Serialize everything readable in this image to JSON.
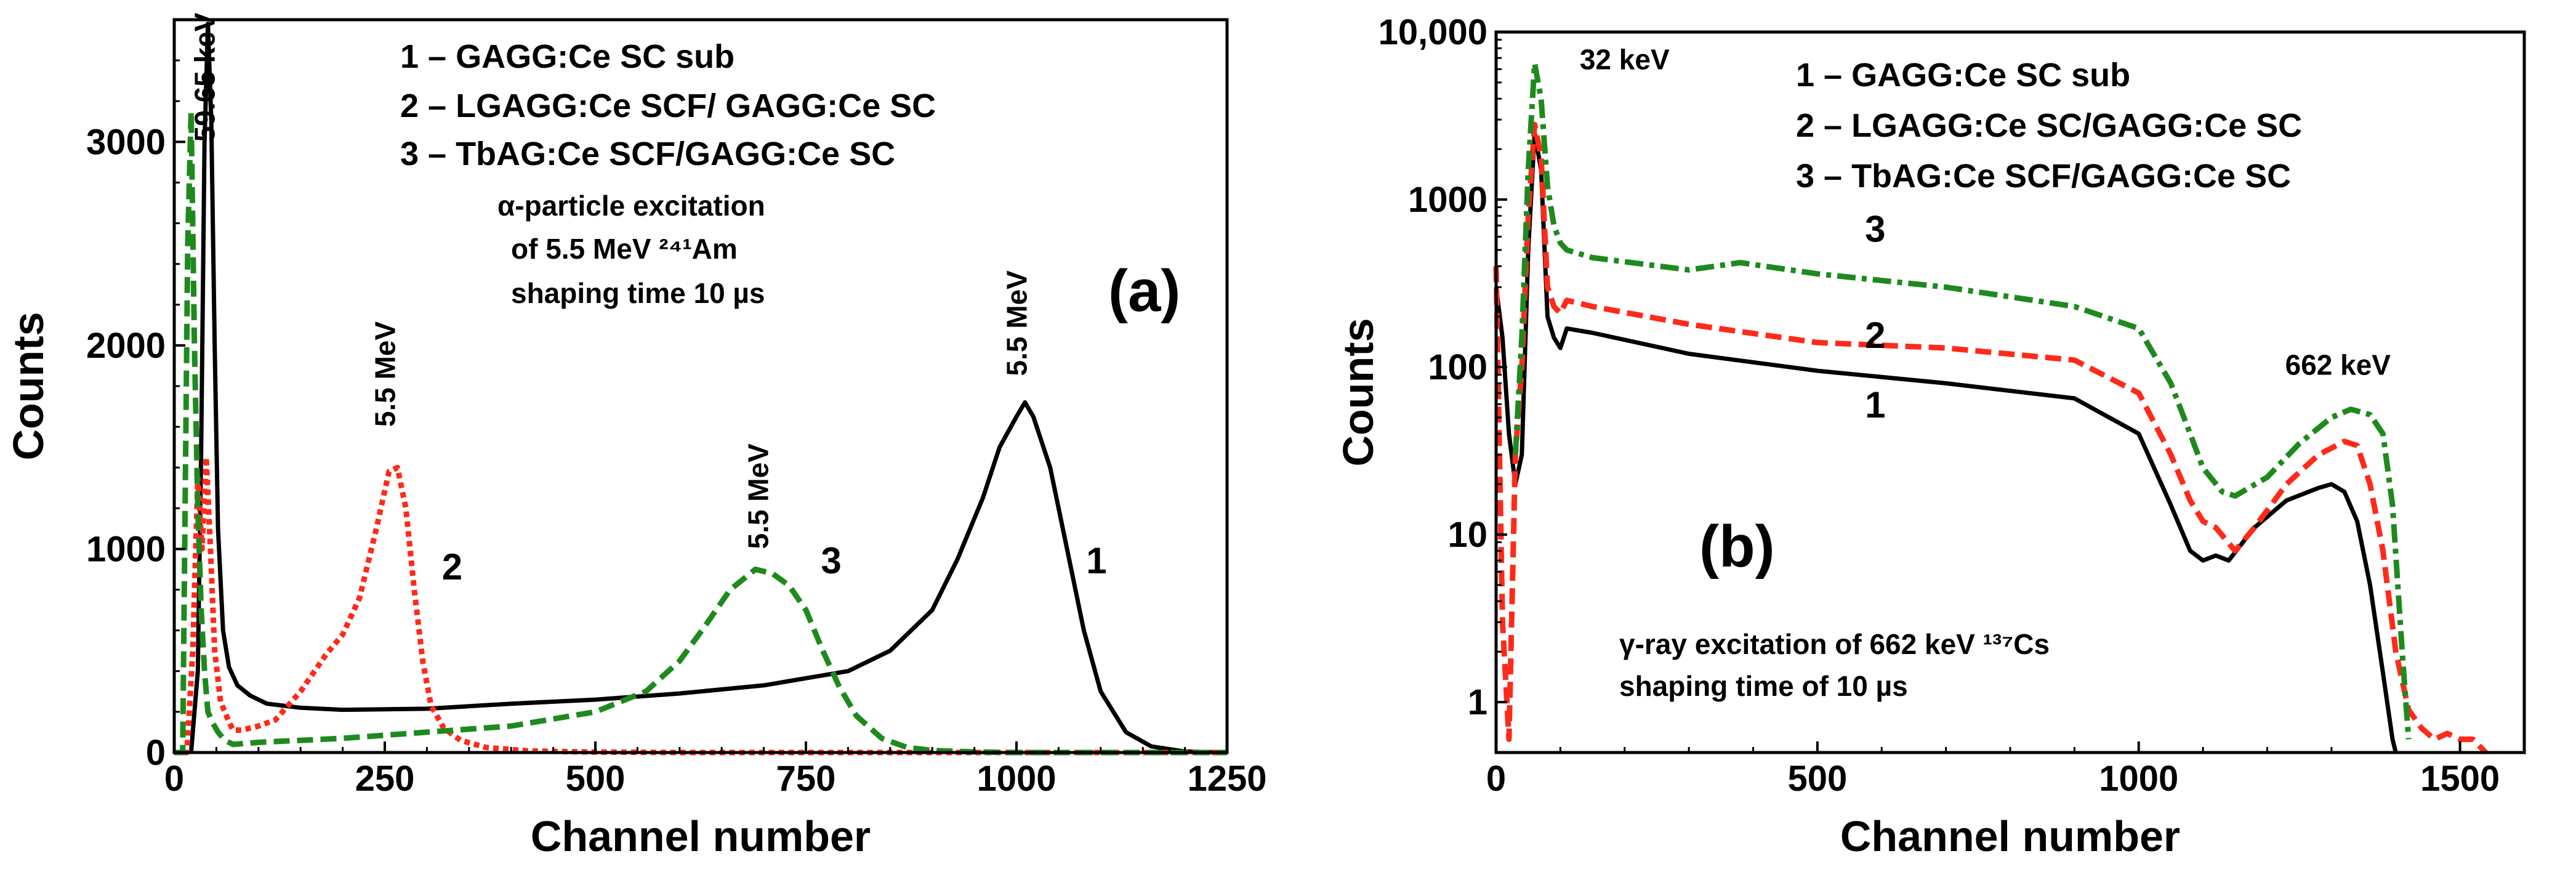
{
  "chart_data": [
    {
      "type": "line",
      "panel_label": "(a)",
      "xlabel": "Channel number",
      "ylabel": "Counts",
      "xlim": [
        0,
        1250
      ],
      "ylim": [
        0,
        3600
      ],
      "x_ticks": [
        "0",
        "250",
        "500",
        "750",
        "1000",
        "1250"
      ],
      "x_tick_values": [
        0,
        250,
        500,
        750,
        1000,
        1250
      ],
      "y_ticks": [
        "0",
        "1000",
        "2000",
        "3000"
      ],
      "y_tick_values": [
        0,
        1000,
        2000,
        3000
      ],
      "legend": [
        "1 – GAGG:Ce SC sub",
        "2 – LGAGG:Ce SCF/ GAGG:Ce SC",
        "3 – TbAG:Ce SCF/GAGG:Ce SC"
      ],
      "annotation_lines": [
        "α-particle excitation",
        "of 5.5 MeV ²⁴¹Am",
        "shaping time 10 µs"
      ],
      "peak_labels": [
        {
          "text": "59.65 keV",
          "x": 48,
          "y": 3000
        },
        {
          "text": "5.5 MeV",
          "x": 262,
          "y": 1600
        },
        {
          "text": "5.5 MeV",
          "x": 705,
          "y": 1000
        },
        {
          "text": "5.5 MeV",
          "x": 1012,
          "y": 1850
        }
      ],
      "curve_labels": [
        {
          "text": "1",
          "x": 1095,
          "y": 880
        },
        {
          "text": "2",
          "x": 330,
          "y": 850
        },
        {
          "text": "3",
          "x": 780,
          "y": 880
        }
      ],
      "series": [
        {
          "name": "1",
          "color": "#000000",
          "style": "solid",
          "x": [
            20,
            28,
            32,
            36,
            40,
            44,
            48,
            52,
            58,
            65,
            75,
            90,
            110,
            150,
            200,
            300,
            400,
            500,
            600,
            700,
            800,
            850,
            900,
            930,
            960,
            980,
            1000,
            1010,
            1020,
            1040,
            1060,
            1080,
            1100,
            1130,
            1160,
            1200,
            1250
          ],
          "y": [
            0,
            400,
            1500,
            3000,
            3580,
            3100,
            2000,
            1100,
            600,
            420,
            330,
            280,
            240,
            220,
            210,
            215,
            240,
            260,
            290,
            330,
            400,
            500,
            700,
            950,
            1250,
            1500,
            1650,
            1720,
            1650,
            1400,
            1000,
            600,
            300,
            100,
            30,
            5,
            0
          ]
        },
        {
          "name": "2",
          "color": "#ff2a1a",
          "style": "dotted",
          "x": [
            0,
            15,
            22,
            28,
            33,
            38,
            43,
            48,
            55,
            60,
            65,
            70,
            80,
            100,
            120,
            150,
            180,
            200,
            220,
            240,
            255,
            265,
            275,
            285,
            295,
            305,
            320,
            340,
            370,
            420,
            500,
            600,
            800,
            1000,
            1250
          ],
          "y": [
            0,
            0,
            500,
            1350,
            1000,
            1450,
            1000,
            500,
            250,
            200,
            150,
            110,
            110,
            130,
            160,
            300,
            480,
            580,
            760,
            1100,
            1380,
            1400,
            1200,
            800,
            450,
            230,
            120,
            60,
            25,
            8,
            2,
            0,
            0,
            0,
            0
          ]
        },
        {
          "name": "3",
          "color": "#1e8a1e",
          "style": "dashed",
          "x": [
            0,
            10,
            16,
            20,
            24,
            28,
            32,
            36,
            40,
            45,
            52,
            60,
            70,
            100,
            150,
            200,
            300,
            400,
            500,
            560,
            600,
            630,
            660,
            690,
            710,
            730,
            750,
            770,
            790,
            810,
            840,
            870,
            900,
            950,
            1000,
            1250
          ],
          "y": [
            0,
            0,
            2500,
            3150,
            2000,
            1200,
            700,
            400,
            200,
            150,
            100,
            60,
            40,
            50,
            60,
            70,
            100,
            130,
            200,
            300,
            450,
            620,
            800,
            900,
            880,
            820,
            700,
            500,
            320,
            180,
            70,
            25,
            10,
            3,
            0,
            0
          ]
        }
      ]
    },
    {
      "type": "line",
      "panel_label": "(b)",
      "xlabel": "Channel number",
      "ylabel": "Counts",
      "yscale": "log",
      "xlim": [
        0,
        1600
      ],
      "ylim": [
        0.5,
        10000
      ],
      "x_ticks": [
        "0",
        "500",
        "1000",
        "1500"
      ],
      "x_tick_values": [
        0,
        500,
        1000,
        1500
      ],
      "y_ticks": [
        "1",
        "10",
        "100",
        "1000",
        "10,000"
      ],
      "y_tick_values": [
        1,
        10,
        100,
        1000,
        10000
      ],
      "legend": [
        "1 – GAGG:Ce SC sub",
        "2 – LGAGG:Ce SC/GAGG:Ce SC",
        "3 – TbAG:Ce SCF/GAGG:Ce SC"
      ],
      "annotation_lines": [
        "γ-ray excitation of 662 keV ¹³⁷Cs",
        "shaping time of 10 µs"
      ],
      "peak_labels": [
        {
          "text": "32 keV",
          "x": 200,
          "y": 6000
        },
        {
          "text": "662 keV",
          "x": 1310,
          "y": 90
        }
      ],
      "curve_labels": [
        {
          "text": "1",
          "x": 590,
          "y": 50
        },
        {
          "text": "2",
          "x": 590,
          "y": 130
        },
        {
          "text": "3",
          "x": 590,
          "y": 560
        }
      ],
      "series": [
        {
          "name": "1",
          "color": "#000000",
          "style": "solid",
          "x": [
            0,
            10,
            20,
            30,
            40,
            50,
            60,
            70,
            80,
            90,
            100,
            110,
            150,
            300,
            500,
            700,
            900,
            1000,
            1050,
            1080,
            1100,
            1120,
            1140,
            1180,
            1230,
            1280,
            1300,
            1320,
            1340,
            1360,
            1380,
            1395,
            1400
          ],
          "y": [
            300,
            150,
            40,
            20,
            30,
            500,
            2500,
            1500,
            200,
            150,
            130,
            170,
            160,
            120,
            95,
            80,
            65,
            40,
            15,
            8,
            7,
            7.5,
            7,
            11,
            16,
            19,
            20,
            18,
            12,
            5,
            1.5,
            0.6,
            0.5
          ]
        },
        {
          "name": "2",
          "color": "#ff2a1a",
          "style": "dashed",
          "x": [
            0,
            10,
            20,
            30,
            40,
            50,
            60,
            70,
            80,
            90,
            100,
            110,
            150,
            300,
            500,
            700,
            900,
            1000,
            1050,
            1080,
            1100,
            1120,
            1150,
            1180,
            1230,
            1280,
            1320,
            1340,
            1360,
            1380,
            1400,
            1420,
            1440,
            1460,
            1480,
            1500,
            1520,
            1540
          ],
          "y": [
            400,
            3,
            0.6,
            30,
            100,
            800,
            2800,
            1800,
            300,
            230,
            210,
            250,
            230,
            180,
            140,
            130,
            110,
            70,
            30,
            16,
            12,
            11,
            8,
            11,
            20,
            30,
            36,
            34,
            20,
            8,
            2,
            0.9,
            0.7,
            0.6,
            0.65,
            0.6,
            0.6,
            0.5
          ]
        },
        {
          "name": "3",
          "color": "#1e8a1e",
          "style": "dashdot",
          "x": [
            30,
            40,
            50,
            60,
            70,
            80,
            90,
            100,
            110,
            150,
            300,
            380,
            500,
            700,
            900,
            1000,
            1050,
            1080,
            1100,
            1130,
            1150,
            1200,
            1250,
            1300,
            1330,
            1360,
            1380,
            1395,
            1410,
            1420
          ],
          "y": [
            30,
            150,
            1500,
            6500,
            4000,
            1200,
            700,
            550,
            500,
            450,
            380,
            420,
            360,
            300,
            230,
            170,
            80,
            40,
            25,
            18,
            17,
            22,
            35,
            50,
            56,
            52,
            40,
            15,
            2,
            0.6
          ]
        }
      ]
    }
  ]
}
